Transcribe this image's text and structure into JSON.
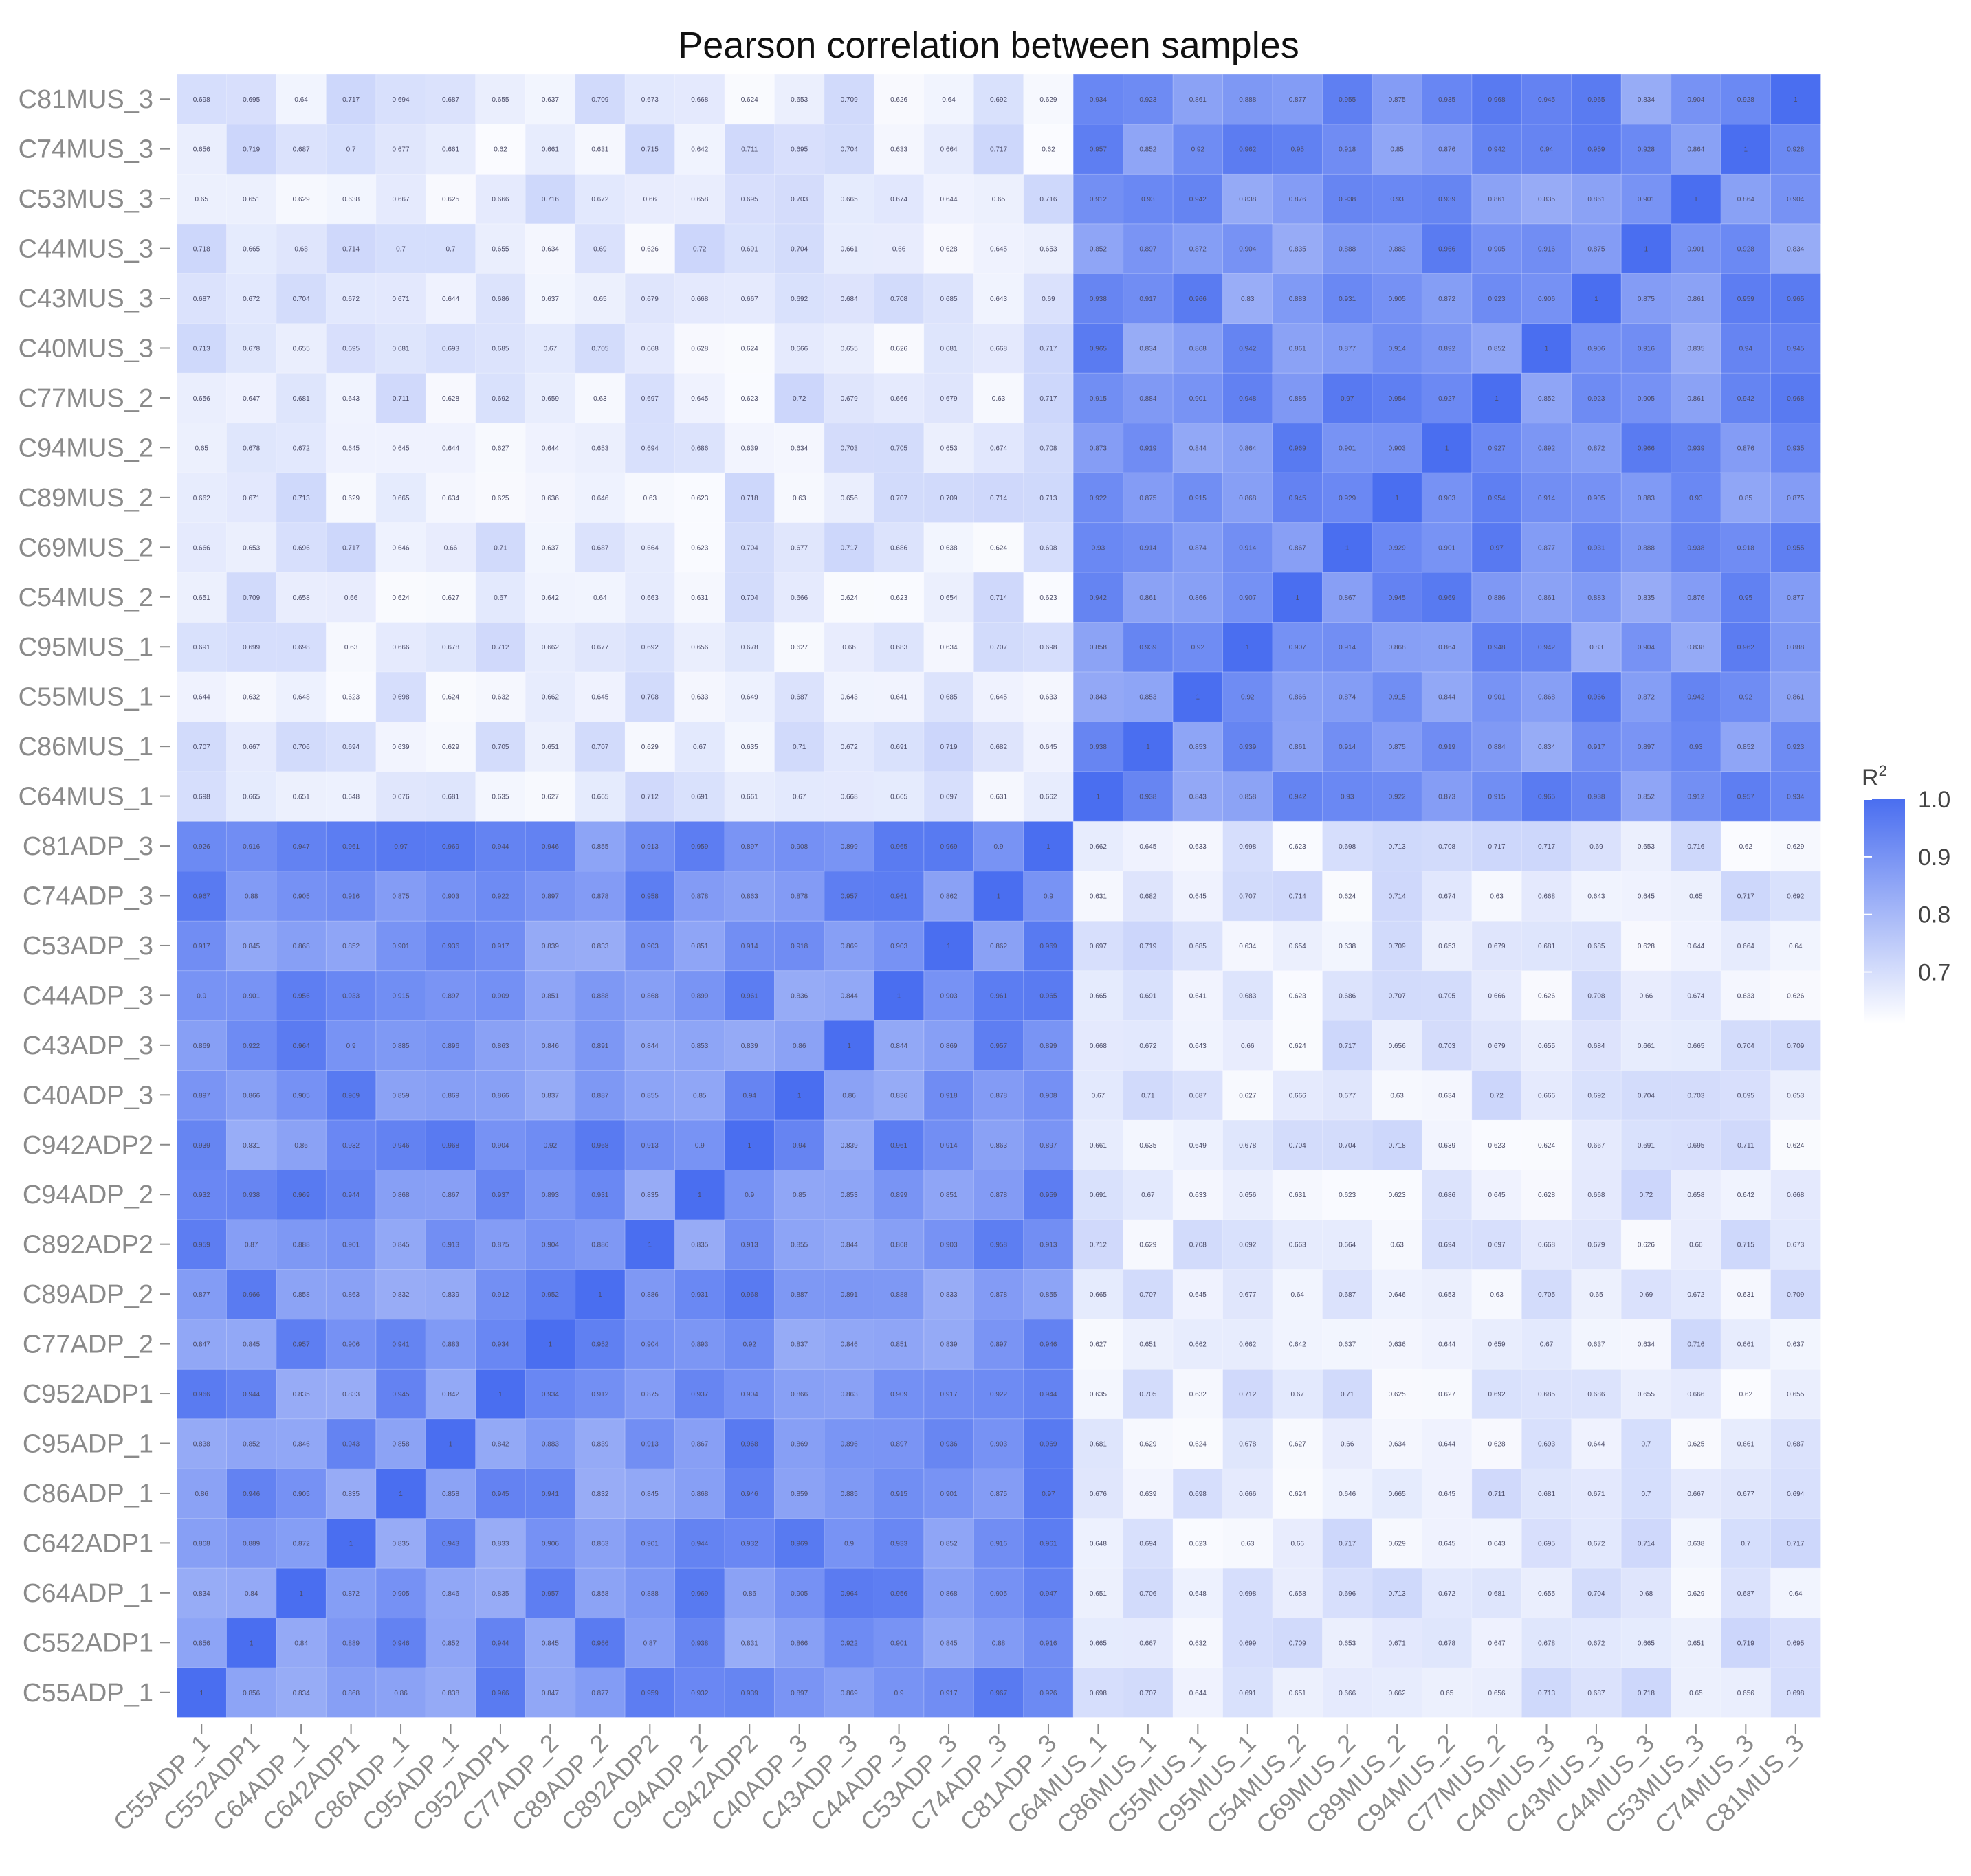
{
  "chart_data": {
    "type": "heatmap",
    "title": "Pearson correlation between samples",
    "samples": [
      "C55ADP_1",
      "C552ADP1",
      "C64ADP_1",
      "C642ADP1",
      "C86ADP_1",
      "C95ADP_1",
      "C952ADP1",
      "C77ADP_2",
      "C89ADP_2",
      "C892ADP2",
      "C94ADP_2",
      "C942ADP2",
      "C40ADP_3",
      "C43ADP_3",
      "C44ADP_3",
      "C53ADP_3",
      "C74ADP_3",
      "C81ADP_3",
      "C64MUS_1",
      "C86MUS_1",
      "C55MUS_1",
      "C95MUS_1",
      "C54MUS_2",
      "C69MUS_2",
      "C89MUS_2",
      "C94MUS_2",
      "C77MUS_2",
      "C40MUS_3",
      "C43MUS_3",
      "C44MUS_3",
      "C53MUS_3",
      "C74MUS_3",
      "C81MUS_3"
    ],
    "x_order": "left-to-right",
    "y_order": "bottom-to-top",
    "groups": [
      {
        "samples": "C55ADP_1 .. C81ADP_3",
        "within_correlation_range": [
          0.82,
          1.0
        ]
      },
      {
        "samples": "C64MUS_1 .. C81MUS_3",
        "within_correlation_range": [
          0.82,
          1.0
        ]
      }
    ],
    "between_group_correlation_range": [
      0.61,
      0.72
    ],
    "diagonal": 1,
    "legend": {
      "title": "R",
      "title_superscript": "2",
      "ticks": [
        "1.0",
        "0.9",
        "0.8",
        "0.7"
      ],
      "tick_values": [
        1.0,
        0.9,
        0.8,
        0.7
      ],
      "range": [
        0.61,
        1.0
      ],
      "position": "right"
    },
    "colors": {
      "low": "#ffffff",
      "high": "#4a6ef0"
    }
  }
}
